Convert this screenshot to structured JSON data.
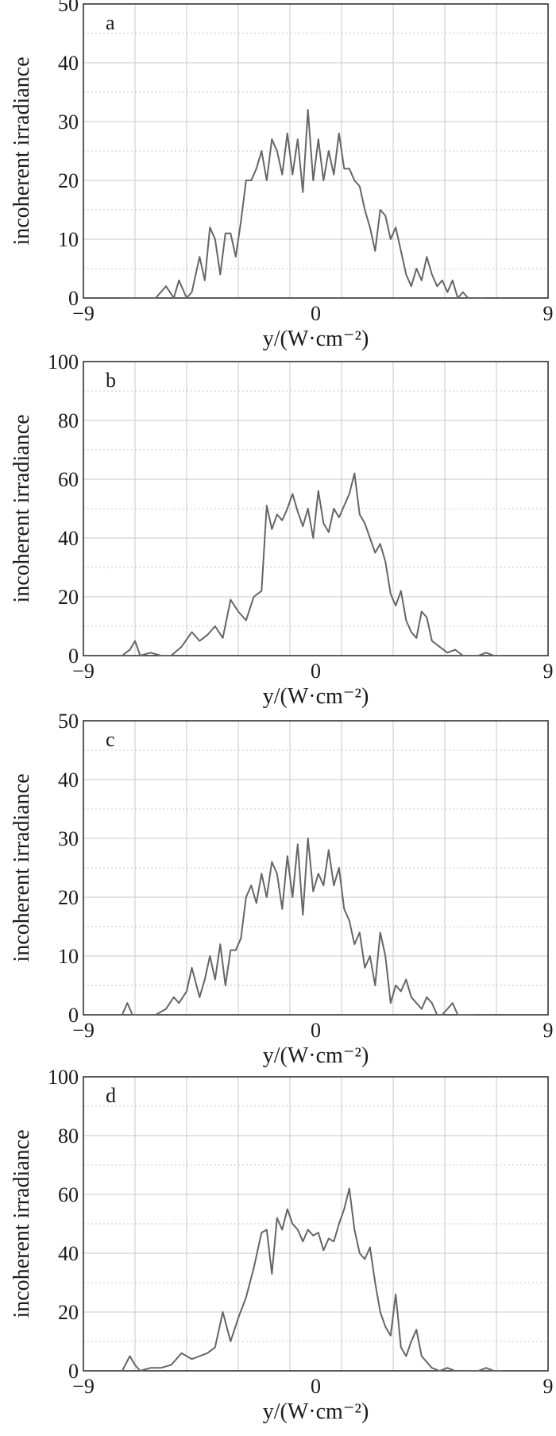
{
  "chart_data": [
    {
      "type": "line",
      "panel_label": "a",
      "ylabel": "incoherent irradiance",
      "xlabel": "y/(W·cm⁻²)",
      "xlim": [
        -9,
        9
      ],
      "ylim": [
        0,
        50
      ],
      "xticks": [
        "−9",
        "0",
        "9"
      ],
      "yticks": [
        "0",
        "10",
        "20",
        "30",
        "40",
        "50"
      ],
      "grid": true,
      "series": [
        {
          "x": [
            -7.5,
            -7.3,
            -7.1,
            -6.9,
            -6.6,
            -6.2,
            -5.8,
            -5.5,
            -5.3,
            -5.0,
            -4.8,
            -4.5,
            -4.3,
            -4.1,
            -3.9,
            -3.7,
            -3.5,
            -3.3,
            -3.1,
            -2.9,
            -2.7,
            -2.5,
            -2.3,
            -2.1,
            -1.9,
            -1.7,
            -1.5,
            -1.3,
            -1.1,
            -0.9,
            -0.7,
            -0.5,
            -0.3,
            -0.1,
            0.1,
            0.3,
            0.5,
            0.7,
            0.9,
            1.1,
            1.3,
            1.5,
            1.7,
            1.9,
            2.1,
            2.3,
            2.5,
            2.7,
            2.9,
            3.1,
            3.3,
            3.5,
            3.7,
            3.9,
            4.1,
            4.3,
            4.5,
            4.7,
            4.9,
            5.1,
            5.3,
            5.5,
            5.7,
            5.9,
            6.1,
            6.3,
            6.5
          ],
          "y": [
            0,
            0,
            0,
            0,
            0,
            0,
            2,
            0,
            3,
            0,
            1,
            7,
            3,
            12,
            10,
            4,
            11,
            11,
            7,
            13,
            20,
            20,
            22,
            25,
            20,
            27,
            25,
            21,
            28,
            21,
            27,
            18,
            32,
            20,
            27,
            20,
            25,
            21,
            28,
            22,
            22,
            20,
            19,
            15,
            12,
            8,
            15,
            14,
            10,
            12,
            8,
            4,
            2,
            5,
            3,
            7,
            4,
            2,
            3,
            1,
            3,
            0,
            1,
            0,
            0,
            0,
            0
          ]
        }
      ]
    },
    {
      "type": "line",
      "panel_label": "b",
      "ylabel": "incoherent irradiance",
      "xlabel": "y/(W·cm⁻²)",
      "xlim": [
        -9,
        9
      ],
      "ylim": [
        0,
        100
      ],
      "xticks": [
        "−9",
        "0",
        "9"
      ],
      "yticks": [
        "0",
        "20",
        "40",
        "60",
        "80",
        "100"
      ],
      "grid": true,
      "series": [
        {
          "x": [
            -7.5,
            -7.2,
            -7.0,
            -6.8,
            -6.4,
            -6.0,
            -5.6,
            -5.2,
            -4.8,
            -4.5,
            -4.2,
            -3.9,
            -3.6,
            -3.3,
            -3.0,
            -2.7,
            -2.4,
            -2.1,
            -1.9,
            -1.7,
            -1.5,
            -1.3,
            -1.1,
            -0.9,
            -0.7,
            -0.5,
            -0.3,
            -0.1,
            0.1,
            0.3,
            0.5,
            0.7,
            0.9,
            1.1,
            1.3,
            1.5,
            1.7,
            1.9,
            2.1,
            2.3,
            2.5,
            2.7,
            2.9,
            3.1,
            3.3,
            3.5,
            3.7,
            3.9,
            4.1,
            4.3,
            4.5,
            4.8,
            5.1,
            5.4,
            5.7,
            6.0,
            6.3,
            6.6,
            6.9,
            7.2
          ],
          "y": [
            0,
            2,
            5,
            0,
            1,
            0,
            0,
            3,
            8,
            5,
            7,
            10,
            6,
            19,
            15,
            12,
            20,
            22,
            51,
            43,
            48,
            46,
            50,
            55,
            49,
            44,
            50,
            40,
            56,
            45,
            42,
            50,
            47,
            51,
            55,
            62,
            48,
            45,
            40,
            35,
            38,
            32,
            21,
            17,
            22,
            12,
            8,
            6,
            15,
            13,
            5,
            3,
            1,
            2,
            0,
            0,
            0,
            1,
            0,
            0
          ]
        }
      ]
    },
    {
      "type": "line",
      "panel_label": "c",
      "ylabel": "incoherent irradiance",
      "xlabel": "y/(W·cm⁻²)",
      "xlim": [
        -9,
        9
      ],
      "ylim": [
        0,
        50
      ],
      "xticks": [
        "−9",
        "0",
        "9"
      ],
      "yticks": [
        "0",
        "10",
        "20",
        "30",
        "40",
        "50"
      ],
      "grid": true,
      "series": [
        {
          "x": [
            -7.5,
            -7.3,
            -7.1,
            -6.9,
            -6.6,
            -6.2,
            -5.8,
            -5.5,
            -5.3,
            -5.0,
            -4.8,
            -4.5,
            -4.3,
            -4.1,
            -3.9,
            -3.7,
            -3.5,
            -3.3,
            -3.1,
            -2.9,
            -2.7,
            -2.5,
            -2.3,
            -2.1,
            -1.9,
            -1.7,
            -1.5,
            -1.3,
            -1.1,
            -0.9,
            -0.7,
            -0.5,
            -0.3,
            -0.1,
            0.1,
            0.3,
            0.5,
            0.7,
            0.9,
            1.1,
            1.3,
            1.5,
            1.7,
            1.9,
            2.1,
            2.3,
            2.5,
            2.7,
            2.9,
            3.1,
            3.3,
            3.5,
            3.7,
            3.9,
            4.1,
            4.3,
            4.5,
            4.7,
            4.9,
            5.1,
            5.3,
            5.5,
            5.7,
            5.9,
            6.1
          ],
          "y": [
            0,
            2,
            0,
            0,
            0,
            0,
            1,
            3,
            2,
            4,
            8,
            3,
            6,
            10,
            6,
            12,
            5,
            11,
            11,
            13,
            20,
            22,
            19,
            24,
            20,
            26,
            24,
            18,
            27,
            20,
            29,
            17,
            30,
            21,
            24,
            22,
            28,
            22,
            25,
            18,
            16,
            12,
            14,
            8,
            10,
            5,
            14,
            10,
            2,
            5,
            4,
            6,
            3,
            2,
            1,
            3,
            2,
            0,
            0,
            1,
            2,
            0,
            0,
            0,
            0
          ]
        }
      ]
    },
    {
      "type": "line",
      "panel_label": "d",
      "ylabel": "incoherent irradiance",
      "xlabel": "y/(W·cm⁻²)",
      "xlim": [
        -9,
        9
      ],
      "ylim": [
        0,
        100
      ],
      "xticks": [
        "−9",
        "0",
        "9"
      ],
      "yticks": [
        "0",
        "20",
        "40",
        "60",
        "80",
        "100"
      ],
      "grid": true,
      "series": [
        {
          "x": [
            -7.5,
            -7.2,
            -7.0,
            -6.8,
            -6.4,
            -6.0,
            -5.6,
            -5.2,
            -4.8,
            -4.5,
            -4.2,
            -3.9,
            -3.6,
            -3.3,
            -3.0,
            -2.7,
            -2.4,
            -2.1,
            -1.9,
            -1.7,
            -1.5,
            -1.3,
            -1.1,
            -0.9,
            -0.7,
            -0.5,
            -0.3,
            -0.1,
            0.1,
            0.3,
            0.5,
            0.7,
            0.9,
            1.1,
            1.3,
            1.5,
            1.7,
            1.9,
            2.1,
            2.3,
            2.5,
            2.7,
            2.9,
            3.1,
            3.3,
            3.5,
            3.7,
            3.9,
            4.1,
            4.3,
            4.5,
            4.8,
            5.1,
            5.4,
            5.7,
            6.0,
            6.3,
            6.6,
            6.9,
            7.2
          ],
          "y": [
            0,
            5,
            2,
            0,
            1,
            1,
            2,
            6,
            4,
            5,
            6,
            8,
            20,
            10,
            18,
            25,
            35,
            47,
            48,
            33,
            52,
            48,
            55,
            50,
            48,
            44,
            48,
            46,
            47,
            41,
            45,
            44,
            50,
            55,
            62,
            48,
            40,
            38,
            42,
            30,
            20,
            15,
            12,
            26,
            8,
            5,
            10,
            14,
            5,
            3,
            1,
            0,
            1,
            0,
            0,
            0,
            0,
            1,
            0,
            0
          ]
        }
      ]
    }
  ]
}
